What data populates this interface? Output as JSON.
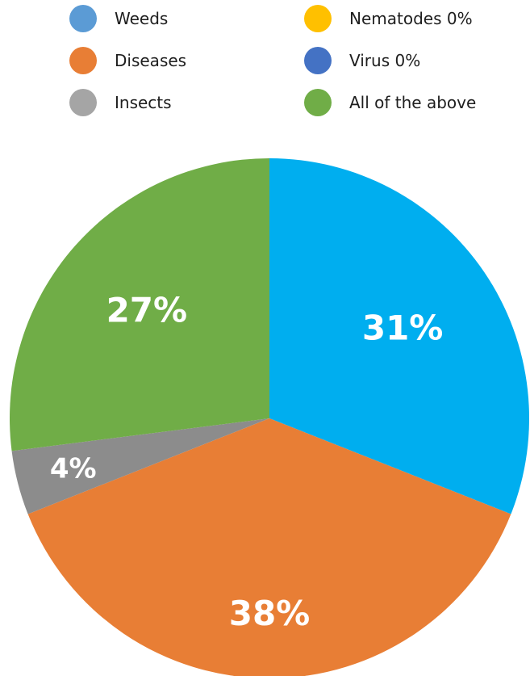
{
  "chart_data": {
    "type": "pie",
    "legend_position": "top",
    "legend": [
      {
        "label": "Weeds",
        "color": "#5b9bd5"
      },
      {
        "label": "Diseases",
        "color": "#e87e35"
      },
      {
        "label": "Insects",
        "color": "#a5a5a5"
      },
      {
        "label": "Nematodes 0%",
        "color": "#ffc000"
      },
      {
        "label": "Virus 0%",
        "color": "#4472c4"
      },
      {
        "label": "All of the above",
        "color": "#70ad47"
      }
    ],
    "slices": [
      {
        "category": "Weeds",
        "value": 31,
        "label": "31%",
        "color": "#00aeef"
      },
      {
        "category": "Diseases",
        "value": 38,
        "label": "38%",
        "color": "#e87e35"
      },
      {
        "category": "Insects",
        "value": 4,
        "label": "4%",
        "color": "#8c8c8c"
      },
      {
        "category": "Nematodes",
        "value": 0,
        "label": "",
        "color": "#ffc000"
      },
      {
        "category": "Virus",
        "value": 0,
        "label": "",
        "color": "#4472c4"
      },
      {
        "category": "All of the above",
        "value": 27,
        "label": "27%",
        "color": "#70ad47"
      }
    ]
  }
}
